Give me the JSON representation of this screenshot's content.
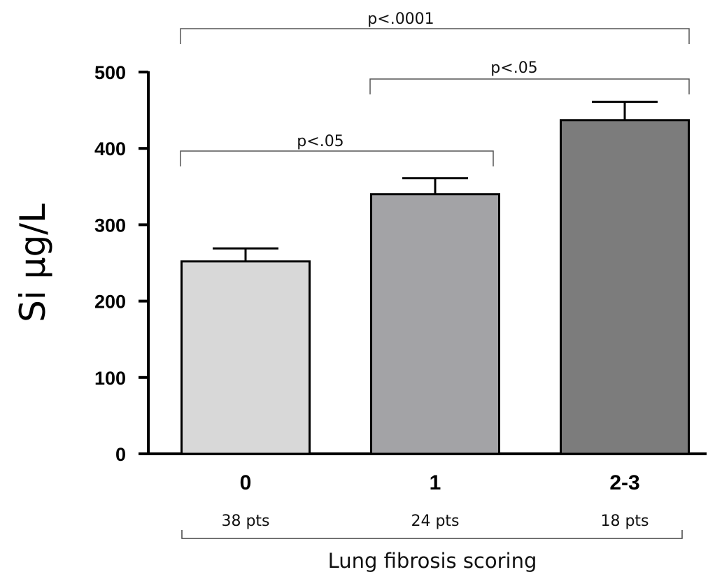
{
  "chart_data": {
    "type": "bar",
    "categories": [
      "0",
      "1",
      "2-3"
    ],
    "values": [
      252,
      340,
      437
    ],
    "errors": [
      17,
      21,
      24
    ],
    "colors": [
      "#d8d8d8",
      "#a3a3a6",
      "#7c7c7c"
    ],
    "group_counts": [
      "38 pts",
      "24 pts",
      "18 pts"
    ],
    "ylabel": "Si μg/L",
    "xlabel": "Lung fibrosis scoring",
    "ylim": [
      0,
      500
    ],
    "yticks": [
      0,
      100,
      200,
      300,
      400,
      500
    ],
    "grid": false,
    "legend": "none",
    "significance": [
      {
        "from": 0,
        "to": 2,
        "label": "p<.0001"
      },
      {
        "from": 1,
        "to": 2,
        "label": "p<.05"
      },
      {
        "from": 0,
        "to": 1,
        "label": "p<.05"
      }
    ]
  }
}
